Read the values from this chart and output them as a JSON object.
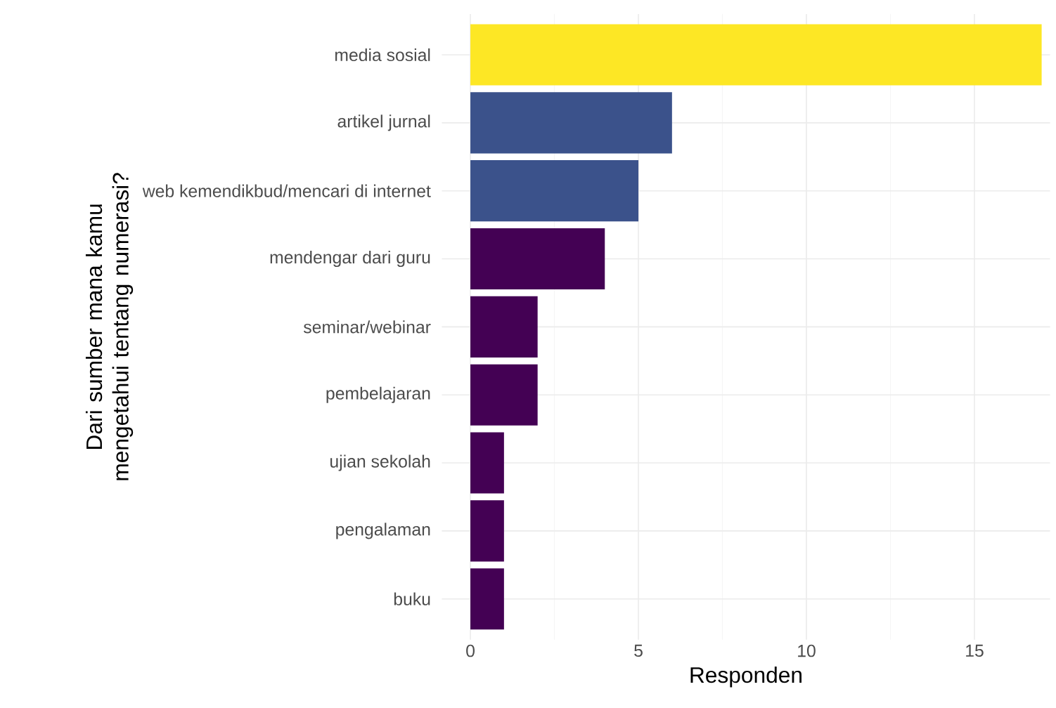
{
  "chart_data": {
    "type": "bar",
    "orientation": "horizontal",
    "categories": [
      "media sosial",
      "artikel jurnal",
      "web kemendikbud/mencari di internet",
      "mendengar dari guru",
      "seminar/webinar",
      "pembelajaran",
      "ujian sekolah",
      "pengalaman",
      "buku"
    ],
    "values": [
      17,
      6,
      5,
      4,
      2,
      2,
      1,
      1,
      1
    ],
    "colors": [
      "#fde725",
      "#3b528b",
      "#3b528b",
      "#440154",
      "#440154",
      "#440154",
      "#440154",
      "#440154",
      "#440154"
    ],
    "xlabel": "Responden",
    "ylabel": "Dari sumber mana kamu mengetahui tentang numerasi?",
    "xlim": [
      -0.85,
      17.25
    ],
    "xticks": [
      0,
      5,
      10,
      15
    ],
    "grid": true
  }
}
